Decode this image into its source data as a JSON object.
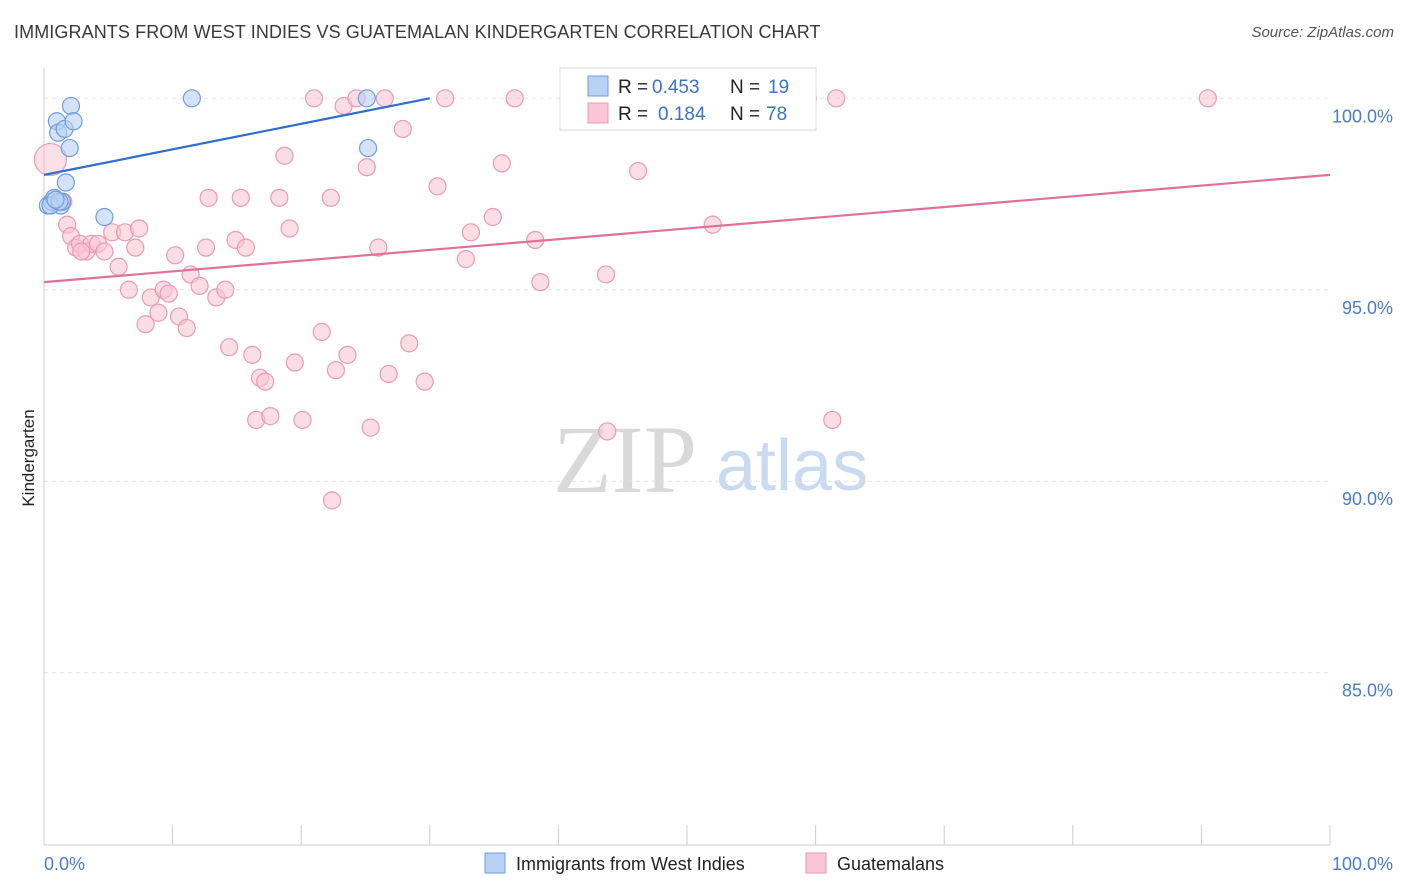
{
  "header": {
    "title": "IMMIGRANTS FROM WEST INDIES VS GUATEMALAN KINDERGARTEN CORRELATION CHART",
    "source": "Source: ZipAtlas.com"
  },
  "watermark": {
    "zip": "ZIP",
    "atlas": "atlas"
  },
  "chart_data": {
    "type": "scatter",
    "title": "IMMIGRANTS FROM WEST INDIES VS GUATEMALAN KINDERGARTEN CORRELATION CHART",
    "xlabel": "",
    "ylabel": "Kindergarten",
    "xlim": [
      0,
      100
    ],
    "ylim": [
      80.5,
      101.0
    ],
    "x_tick_labels": [
      "0.0%",
      "100.0%"
    ],
    "y_ticks": [
      85,
      90,
      95,
      100
    ],
    "y_tick_labels": [
      "85.0%",
      "90.0%",
      "95.0%",
      "100.0%"
    ],
    "grid": true,
    "legend_position": "top-center",
    "series": [
      {
        "name": "Immigrants from West Indies",
        "color": "#7fa8e8",
        "line_color": "#2e6fd0",
        "R": "0.453",
        "N": "19",
        "trend": {
          "x": [
            0,
            30.0
          ],
          "y": [
            98.0,
            100.0
          ]
        },
        "points": [
          [
            0.3,
            97.2
          ],
          [
            0.6,
            97.3
          ],
          [
            0.8,
            97.4
          ],
          [
            1.0,
            99.4
          ],
          [
            1.1,
            99.1
          ],
          [
            1.3,
            97.2
          ],
          [
            1.4,
            97.3
          ],
          [
            1.6,
            99.2
          ],
          [
            1.7,
            97.8
          ],
          [
            2.0,
            98.7
          ],
          [
            2.1,
            99.8
          ],
          [
            2.3,
            99.4
          ],
          [
            4.7,
            96.9
          ],
          [
            11.5,
            100.0
          ],
          [
            25.1,
            100.0
          ],
          [
            25.2,
            98.7
          ],
          [
            0.5,
            97.2
          ],
          [
            1.2,
            97.3
          ],
          [
            0.9,
            97.35
          ]
        ]
      },
      {
        "name": "Guatemalans",
        "color": "#f4a6c0",
        "line_color": "#e0709a",
        "R": "0.184",
        "N": "78",
        "trend": {
          "x": [
            0,
            100
          ],
          "y": [
            95.2,
            98.0
          ]
        },
        "points": [
          [
            0.5,
            98.4
          ],
          [
            1.5,
            97.3
          ],
          [
            1.8,
            96.7
          ],
          [
            2.1,
            96.4
          ],
          [
            2.5,
            96.1
          ],
          [
            2.8,
            96.2
          ],
          [
            3.3,
            96.0
          ],
          [
            3.7,
            96.2
          ],
          [
            4.2,
            96.2
          ],
          [
            4.7,
            96.0
          ],
          [
            5.3,
            96.5
          ],
          [
            5.8,
            95.6
          ],
          [
            6.3,
            96.5
          ],
          [
            6.6,
            95.0
          ],
          [
            7.1,
            96.1
          ],
          [
            7.4,
            96.6
          ],
          [
            7.9,
            94.1
          ],
          [
            8.3,
            94.8
          ],
          [
            8.9,
            94.4
          ],
          [
            9.3,
            95.0
          ],
          [
            9.7,
            94.9
          ],
          [
            10.2,
            95.9
          ],
          [
            10.5,
            94.3
          ],
          [
            11.1,
            94.0
          ],
          [
            11.4,
            95.4
          ],
          [
            12.1,
            95.1
          ],
          [
            12.6,
            96.1
          ],
          [
            12.8,
            97.4
          ],
          [
            13.4,
            94.8
          ],
          [
            14.1,
            95.0
          ],
          [
            14.4,
            93.5
          ],
          [
            14.9,
            96.3
          ],
          [
            15.3,
            97.4
          ],
          [
            15.7,
            96.1
          ],
          [
            16.2,
            93.3
          ],
          [
            16.5,
            91.6
          ],
          [
            16.8,
            92.7
          ],
          [
            17.2,
            92.6
          ],
          [
            17.6,
            91.7
          ],
          [
            18.3,
            97.4
          ],
          [
            18.7,
            98.5
          ],
          [
            19.1,
            96.6
          ],
          [
            19.5,
            93.1
          ],
          [
            20.1,
            91.6
          ],
          [
            21.0,
            100.0
          ],
          [
            21.6,
            93.9
          ],
          [
            22.3,
            97.4
          ],
          [
            22.7,
            92.9
          ],
          [
            23.3,
            99.8
          ],
          [
            23.6,
            93.3
          ],
          [
            24.3,
            100.0
          ],
          [
            25.1,
            98.2
          ],
          [
            25.4,
            91.4
          ],
          [
            26.0,
            96.1
          ],
          [
            26.5,
            100.0
          ],
          [
            26.8,
            92.8
          ],
          [
            27.9,
            99.2
          ],
          [
            28.4,
            93.6
          ],
          [
            29.6,
            92.6
          ],
          [
            30.6,
            97.7
          ],
          [
            31.2,
            100.0
          ],
          [
            32.8,
            95.8
          ],
          [
            33.2,
            96.5
          ],
          [
            34.9,
            96.9
          ],
          [
            35.6,
            98.3
          ],
          [
            36.6,
            100.0
          ],
          [
            38.2,
            96.3
          ],
          [
            38.6,
            95.2
          ],
          [
            43.7,
            95.4
          ],
          [
            43.8,
            91.3
          ],
          [
            46.2,
            98.1
          ],
          [
            52.0,
            96.7
          ],
          [
            59.4,
            100.0
          ],
          [
            61.6,
            100.0
          ],
          [
            61.3,
            91.6
          ],
          [
            90.5,
            100.0
          ],
          [
            22.4,
            89.5
          ],
          [
            2.9,
            96.0
          ]
        ]
      }
    ]
  },
  "legend": {
    "r_label": "R =",
    "n_label": "N =",
    "rows": [
      {
        "r": "0.453",
        "n": "19"
      },
      {
        "r": "0.184",
        "n": "78"
      }
    ]
  },
  "bottom_legend": {
    "items": [
      "Immigrants from West Indies",
      "Guatemalans"
    ]
  },
  "colors": {
    "blue_fill": "#b9d1f3",
    "blue_stroke": "#6f9de0",
    "pink_fill": "#f8c6d6",
    "pink_stroke": "#e99ab6",
    "tick_label": "#4a7cc9",
    "grid": "#e2e2e2"
  }
}
